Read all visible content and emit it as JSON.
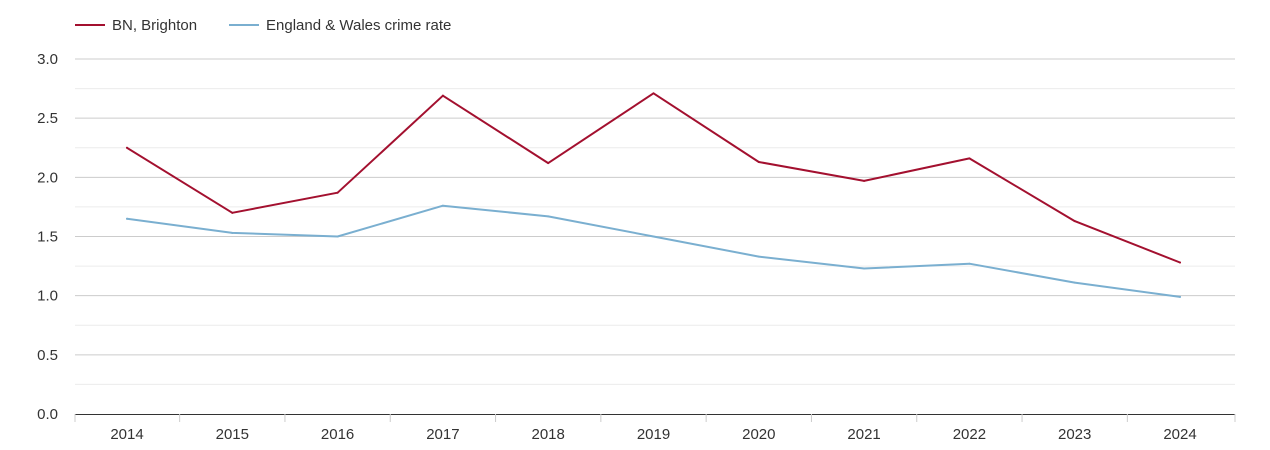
{
  "chart_data": {
    "type": "line",
    "categories": [
      "2014",
      "2015",
      "2016",
      "2017",
      "2018",
      "2019",
      "2020",
      "2021",
      "2022",
      "2023",
      "2024"
    ],
    "series": [
      {
        "name": "BN, Brighton",
        "color": "#a3102f",
        "values": [
          2.25,
          1.7,
          1.87,
          2.69,
          2.12,
          2.71,
          2.13,
          1.97,
          2.16,
          1.63,
          1.28
        ]
      },
      {
        "name": "England & Wales crime rate",
        "color": "#7aafd0",
        "values": [
          1.65,
          1.53,
          1.5,
          1.76,
          1.67,
          1.5,
          1.33,
          1.23,
          1.27,
          1.11,
          0.99
        ]
      }
    ],
    "y_ticks": [
      "0.0",
      "0.5",
      "1.0",
      "1.5",
      "2.0",
      "2.5",
      "3.0"
    ],
    "ylim": [
      0,
      3
    ],
    "grid": true,
    "legend_position": "top-left"
  }
}
